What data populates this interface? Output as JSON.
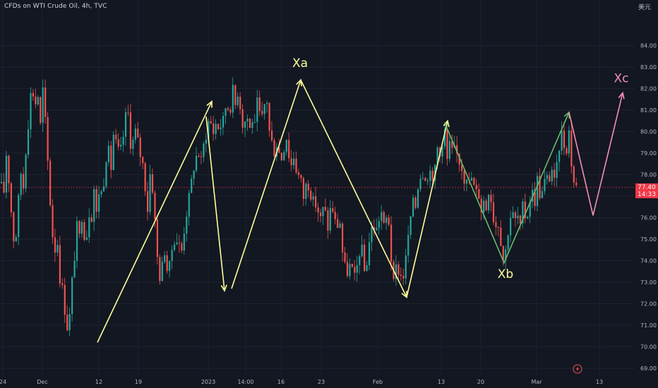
{
  "header": {
    "title": "CFDs on WTI Crude Oil, 4h, TVC"
  },
  "currency": "美元",
  "price_badge": {
    "price": "77.40",
    "countdown": "14:33"
  },
  "colors": {
    "background": "#131722",
    "candle_up": "#26a69a",
    "candle_down": "#ef5350",
    "wave_yellow": "#ffff99",
    "wave_green": "#66bb6a",
    "wave_pink": "#f48fb1",
    "price_line": "#f23645"
  },
  "chart_data": {
    "type": "candlestick",
    "title": "",
    "ylim": [
      69,
      84.5
    ],
    "yticks": [
      69.0,
      70.0,
      71.0,
      72.0,
      73.0,
      74.0,
      75.0,
      76.0,
      77.0,
      78.0,
      79.0,
      80.0,
      81.0,
      82.0,
      83.0,
      84.0
    ],
    "ytick_labels": [
      "69.00",
      "70.00",
      "71.00",
      "72.00",
      "73.00",
      "74.00",
      "75.00",
      "76.00",
      "77.00",
      "78.00",
      "79.00",
      "80.00",
      "81.00",
      "82.00",
      "83.00",
      "84.00"
    ],
    "xticks": [
      "24",
      "Dec",
      "12",
      "19",
      "2023",
      "14:00",
      "16",
      "23",
      "Feb",
      "13",
      "20",
      "Mar",
      "13"
    ],
    "current_price": 77.4,
    "price_path": [
      [
        0,
        77.6
      ],
      [
        4,
        77.0
      ],
      [
        8,
        79.0
      ],
      [
        12,
        77.5
      ],
      [
        16,
        75.8
      ],
      [
        20,
        74.4
      ],
      [
        24,
        76.3
      ],
      [
        28,
        78.2
      ],
      [
        32,
        77.4
      ],
      [
        36,
        79.4
      ],
      [
        40,
        80.7
      ],
      [
        44,
        82.4
      ],
      [
        48,
        81.0
      ],
      [
        52,
        82.0
      ],
      [
        56,
        80.2
      ],
      [
        60,
        82.1
      ],
      [
        64,
        80.0
      ],
      [
        68,
        77.8
      ],
      [
        72,
        75.6
      ],
      [
        76,
        74.4
      ],
      [
        80,
        75.0
      ],
      [
        84,
        73.1
      ],
      [
        88,
        72.6
      ],
      [
        92,
        71.3
      ],
      [
        96,
        70.6
      ],
      [
        100,
        72.7
      ],
      [
        104,
        74.0
      ],
      [
        108,
        75.6
      ],
      [
        112,
        75.0
      ],
      [
        116,
        76.5
      ],
      [
        120,
        74.3
      ],
      [
        124,
        76.4
      ],
      [
        128,
        75.8
      ],
      [
        132,
        77.4
      ],
      [
        136,
        76.0
      ],
      [
        140,
        77.6
      ],
      [
        144,
        76.9
      ],
      [
        148,
        78.6
      ],
      [
        152,
        79.3
      ],
      [
        156,
        78.2
      ],
      [
        160,
        80.0
      ],
      [
        164,
        79.3
      ],
      [
        168,
        79.0
      ],
      [
        172,
        79.3
      ],
      [
        176,
        80.6
      ],
      [
        180,
        81.0
      ],
      [
        184,
        79.4
      ],
      [
        188,
        79.6
      ],
      [
        192,
        80.2
      ],
      [
        196,
        79.0
      ],
      [
        200,
        78.8
      ],
      [
        204,
        77.6
      ],
      [
        208,
        76.4
      ],
      [
        212,
        78.3
      ],
      [
        216,
        77.0
      ],
      [
        220,
        75.0
      ],
      [
        224,
        73.1
      ],
      [
        228,
        73.6
      ],
      [
        232,
        74.5
      ],
      [
        236,
        73.5
      ],
      [
        240,
        73.8
      ],
      [
        244,
        75.0
      ],
      [
        248,
        75.0
      ],
      [
        252,
        74.8
      ],
      [
        256,
        74.4
      ],
      [
        260,
        75.5
      ],
      [
        264,
        76.4
      ],
      [
        268,
        77.2
      ],
      [
        272,
        78.1
      ],
      [
        276,
        78.8
      ],
      [
        280,
        79.0
      ],
      [
        284,
        78.6
      ],
      [
        288,
        79.5
      ],
      [
        292,
        80.0
      ],
      [
        296,
        80.8
      ],
      [
        300,
        79.8
      ],
      [
        304,
        80.4
      ],
      [
        308,
        80.2
      ],
      [
        312,
        80.3
      ],
      [
        316,
        80.6
      ],
      [
        320,
        81.5
      ],
      [
        324,
        80.7
      ],
      [
        328,
        82.1
      ],
      [
        332,
        81.2
      ],
      [
        336,
        81.9
      ],
      [
        340,
        81.0
      ],
      [
        344,
        80.0
      ],
      [
        348,
        81.0
      ],
      [
        352,
        80.0
      ],
      [
        356,
        80.6
      ],
      [
        360,
        80.2
      ],
      [
        364,
        81.6
      ],
      [
        368,
        80.4
      ],
      [
        372,
        80.8
      ],
      [
        376,
        81.9
      ],
      [
        380,
        80.1
      ],
      [
        384,
        79.5
      ],
      [
        388,
        79.0
      ],
      [
        392,
        79.6
      ],
      [
        396,
        78.6
      ],
      [
        400,
        79.0
      ],
      [
        404,
        79.9
      ],
      [
        408,
        78.9
      ],
      [
        412,
        78.4
      ],
      [
        416,
        79.0
      ],
      [
        420,
        77.8
      ],
      [
        424,
        78.1
      ],
      [
        428,
        76.8
      ],
      [
        432,
        77.5
      ],
      [
        436,
        77.5
      ],
      [
        440,
        77.0
      ],
      [
        444,
        76.6
      ],
      [
        448,
        76.6
      ],
      [
        452,
        75.8
      ],
      [
        456,
        76.4
      ],
      [
        460,
        76.2
      ],
      [
        464,
        75.4
      ],
      [
        468,
        76.8
      ],
      [
        472,
        76.0
      ],
      [
        476,
        75.5
      ],
      [
        480,
        76.0
      ],
      [
        484,
        74.4
      ],
      [
        488,
        73.6
      ],
      [
        492,
        73.4
      ],
      [
        496,
        74.0
      ],
      [
        500,
        73.0
      ],
      [
        504,
        73.6
      ],
      [
        508,
        74.4
      ],
      [
        512,
        74.5
      ],
      [
        516,
        73.2
      ],
      [
        520,
        74.4
      ],
      [
        524,
        75.4
      ],
      [
        528,
        75.6
      ],
      [
        532,
        75.4
      ],
      [
        536,
        76.0
      ],
      [
        540,
        76.3
      ],
      [
        544,
        75.2
      ],
      [
        548,
        76.6
      ],
      [
        552,
        74.5
      ],
      [
        556,
        72.8
      ],
      [
        560,
        73.7
      ],
      [
        564,
        73.5
      ],
      [
        568,
        73.2
      ],
      [
        572,
        73.4
      ],
      [
        576,
        75.0
      ],
      [
        580,
        75.6
      ],
      [
        584,
        77.0
      ],
      [
        588,
        76.5
      ],
      [
        592,
        77.9
      ],
      [
        596,
        78.0
      ],
      [
        600,
        78.2
      ],
      [
        604,
        77.5
      ],
      [
        608,
        78.5
      ],
      [
        612,
        77.4
      ],
      [
        616,
        78.7
      ],
      [
        620,
        79.6
      ],
      [
        624,
        78.6
      ],
      [
        628,
        80.4
      ],
      [
        632,
        78.6
      ],
      [
        636,
        79.4
      ],
      [
        640,
        79.0
      ],
      [
        644,
        79.2
      ],
      [
        648,
        78.7
      ],
      [
        652,
        78.5
      ],
      [
        656,
        77.8
      ],
      [
        660,
        78.0
      ],
      [
        664,
        77.5
      ],
      [
        668,
        78.0
      ],
      [
        672,
        77.0
      ],
      [
        676,
        77.4
      ],
      [
        680,
        76.3
      ],
      [
        684,
        76.8
      ],
      [
        688,
        76.4
      ],
      [
        692,
        77.6
      ],
      [
        696,
        76.4
      ],
      [
        700,
        75.5
      ],
      [
        704,
        75.9
      ],
      [
        708,
        75.0
      ],
      [
        712,
        74.0
      ],
      [
        716,
        74.6
      ],
      [
        720,
        75.8
      ],
      [
        724,
        76.3
      ],
      [
        728,
        75.8
      ],
      [
        732,
        76.1
      ],
      [
        736,
        75.5
      ],
      [
        740,
        76.7
      ],
      [
        744,
        75.8
      ],
      [
        748,
        76.5
      ],
      [
        752,
        77.4
      ],
      [
        756,
        76.6
      ],
      [
        760,
        77.8
      ],
      [
        764,
        77.0
      ],
      [
        768,
        77.2
      ],
      [
        772,
        78.0
      ],
      [
        776,
        77.6
      ],
      [
        780,
        78.4
      ],
      [
        784,
        77.6
      ],
      [
        788,
        78.4
      ],
      [
        792,
        79.6
      ],
      [
        796,
        80.1
      ],
      [
        800,
        78.6
      ],
      [
        804,
        80.4
      ],
      [
        808,
        78.6
      ],
      [
        812,
        77.6
      ],
      [
        816,
        77.4
      ]
    ],
    "wave_lines": [
      {
        "color": "yellow",
        "points": [
          [
            138,
            70.2
          ],
          [
            300,
            81.4
          ]
        ]
      },
      {
        "color": "yellow",
        "points": [
          [
            292,
            80.7
          ],
          [
            318,
            72.6
          ]
        ]
      },
      {
        "color": "yellow",
        "points": [
          [
            328,
            72.7
          ],
          [
            426,
            82.4
          ]
        ]
      },
      {
        "color": "yellow",
        "points": [
          [
            426,
            82.4
          ],
          [
            576,
            72.3
          ]
        ]
      },
      {
        "color": "yellow",
        "points": [
          [
            576,
            72.3
          ],
          [
            634,
            80.5
          ]
        ]
      },
      {
        "color": "green",
        "points": [
          [
            630,
            80.4
          ],
          [
            714,
            73.9
          ],
          [
            806,
            80.9
          ]
        ]
      },
      {
        "color": "pink",
        "points": [
          [
            806,
            80.9
          ],
          [
            840,
            76.1
          ],
          [
            882,
            81.8
          ]
        ]
      }
    ],
    "annotations": [
      {
        "text": "Xa",
        "x": 425,
        "y": 83.0,
        "color": "yellow"
      },
      {
        "text": "Xb",
        "x": 716,
        "y": 73.2,
        "color": "yellow"
      },
      {
        "text": "Xc",
        "x": 880,
        "y": 82.3,
        "color": "pink"
      }
    ]
  }
}
